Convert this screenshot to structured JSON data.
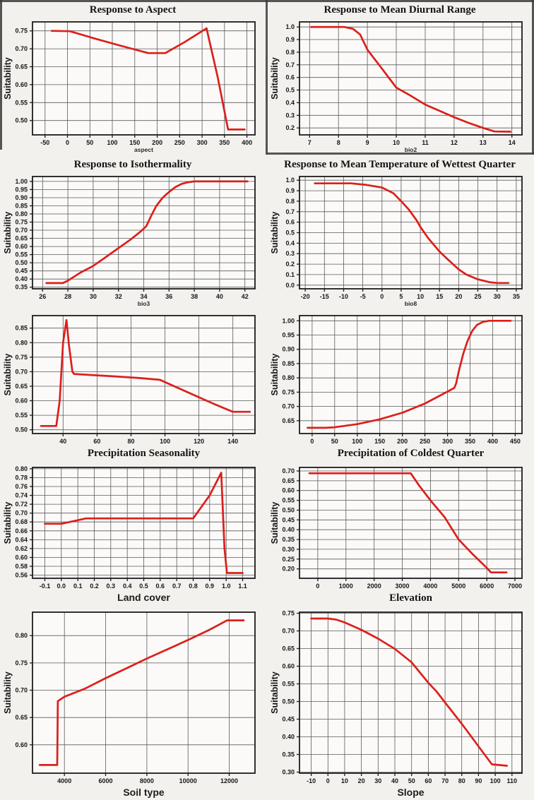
{
  "page": {
    "background": "#f3f1ee",
    "line_color": "#dc1f1b",
    "grid_color": "#5a5a5a",
    "frame_color": "#1c1c1c",
    "plot_fill": "#fbfaf8",
    "ylabel_all": "Suitability"
  },
  "chart_data": [
    {
      "type": "line",
      "title": "Response to Aspect",
      "xlabel": "aspect",
      "xlabel_style": "small-sans",
      "ylabel": "Suitability",
      "grid": true,
      "legend": "none",
      "xlim": [
        -78,
        418
      ],
      "ylim": [
        0.46,
        0.775
      ],
      "xtick_values": [
        -50,
        0,
        50,
        100,
        150,
        200,
        250,
        300,
        350,
        400
      ],
      "xtick_labels": [
        "-50",
        "0",
        "50",
        "100",
        "150",
        "200",
        "250",
        "300",
        "350",
        "400"
      ],
      "ytick_values": [
        0.5,
        0.55,
        0.6,
        0.65,
        0.7,
        0.75
      ],
      "ytick_labels": [
        "0.50",
        "0.55",
        "0.60",
        "0.65",
        "0.70",
        "0.75"
      ],
      "points": [
        [
          -35,
          0.75
        ],
        [
          5,
          0.749
        ],
        [
          60,
          0.729
        ],
        [
          120,
          0.708
        ],
        [
          180,
          0.688
        ],
        [
          218,
          0.688
        ],
        [
          260,
          0.718
        ],
        [
          310,
          0.757
        ],
        [
          335,
          0.62
        ],
        [
          358,
          0.475
        ],
        [
          395,
          0.475
        ]
      ]
    },
    {
      "type": "line",
      "title": "Response to Mean Diurnal Range",
      "xlabel": "bio2",
      "xlabel_style": "small-sans",
      "ylabel": "Suitability",
      "grid": true,
      "legend": "none",
      "xlim": [
        6.65,
        14.35
      ],
      "ylim": [
        0.145,
        1.04
      ],
      "xtick_values": [
        7,
        8,
        9,
        10,
        11,
        12,
        13,
        14
      ],
      "xtick_labels": [
        "7",
        "8",
        "9",
        "10",
        "11",
        "12",
        "13",
        "14"
      ],
      "ytick_values": [
        0.2,
        0.3,
        0.4,
        0.5,
        0.6,
        0.7,
        0.8,
        0.9,
        1.0
      ],
      "ytick_labels": [
        "0.2",
        "0.3",
        "0.4",
        "0.5",
        "0.6",
        "0.7",
        "0.8",
        "0.9",
        "1.0"
      ],
      "points": [
        [
          7.05,
          1.0
        ],
        [
          8.2,
          1.0
        ],
        [
          8.5,
          0.985
        ],
        [
          8.75,
          0.94
        ],
        [
          9.0,
          0.82
        ],
        [
          9.5,
          0.67
        ],
        [
          10.0,
          0.52
        ],
        [
          10.5,
          0.455
        ],
        [
          11.0,
          0.385
        ],
        [
          11.5,
          0.335
        ],
        [
          12.0,
          0.285
        ],
        [
          12.5,
          0.24
        ],
        [
          13.0,
          0.2
        ],
        [
          13.4,
          0.172
        ],
        [
          13.95,
          0.17
        ]
      ]
    },
    {
      "type": "line",
      "title": "Response to Isothermality",
      "xlabel": "bio3",
      "xlabel_style": "small-sans",
      "ylabel": "Suitability",
      "grid": true,
      "legend": "none",
      "xlim": [
        25.2,
        42.8
      ],
      "ylim": [
        0.34,
        1.03
      ],
      "xtick_values": [
        26,
        28,
        30,
        32,
        34,
        36,
        38,
        40,
        42
      ],
      "xtick_labels": [
        "26",
        "28",
        "30",
        "32",
        "34",
        "36",
        "38",
        "40",
        "42"
      ],
      "ytick_values": [
        0.35,
        0.4,
        0.45,
        0.5,
        0.55,
        0.6,
        0.65,
        0.7,
        0.75,
        0.8,
        0.85,
        0.9,
        0.95,
        1.0
      ],
      "ytick_labels": [
        "0.35",
        "0.40",
        "0.45",
        "0.50",
        "0.55",
        "0.60",
        "0.65",
        "0.70",
        "0.75",
        "0.80",
        "0.85",
        "0.90",
        "0.95",
        "1.00"
      ],
      "points": [
        [
          26.3,
          0.375
        ],
        [
          27.6,
          0.375
        ],
        [
          28.0,
          0.39
        ],
        [
          29.0,
          0.44
        ],
        [
          30.0,
          0.48
        ],
        [
          31.0,
          0.535
        ],
        [
          32.0,
          0.59
        ],
        [
          33.0,
          0.645
        ],
        [
          33.8,
          0.695
        ],
        [
          34.2,
          0.725
        ],
        [
          34.6,
          0.79
        ],
        [
          35.0,
          0.85
        ],
        [
          35.5,
          0.9
        ],
        [
          36.0,
          0.935
        ],
        [
          36.5,
          0.965
        ],
        [
          37.0,
          0.985
        ],
        [
          37.5,
          0.995
        ],
        [
          38.0,
          1.0
        ],
        [
          42.2,
          1.0
        ]
      ]
    },
    {
      "type": "line",
      "title": "Response to Mean Temperature of Wettest Quarter",
      "xlabel": "bio8",
      "xlabel_style": "small-sans",
      "ylabel": "Suitability",
      "grid": true,
      "legend": "none",
      "xlim": [
        -21.5,
        36.5
      ],
      "ylim": [
        -0.035,
        1.035
      ],
      "xtick_values": [
        -20,
        -15,
        -10,
        -5,
        0,
        5,
        10,
        15,
        20,
        25,
        30,
        35
      ],
      "xtick_labels": [
        "-20",
        "-15",
        "-10",
        "-5",
        "0",
        "5",
        "10",
        "15",
        "20",
        "25",
        "30",
        "35"
      ],
      "ytick_values": [
        0.0,
        0.1,
        0.2,
        0.3,
        0.4,
        0.5,
        0.6,
        0.7,
        0.8,
        0.9,
        1.0
      ],
      "ytick_labels": [
        "0.0",
        "0.1",
        "0.2",
        "0.3",
        "0.4",
        "0.5",
        "0.6",
        "0.7",
        "0.8",
        "0.9",
        "1.0"
      ],
      "points": [
        [
          -17.5,
          0.97
        ],
        [
          -8,
          0.97
        ],
        [
          -4,
          0.955
        ],
        [
          0,
          0.93
        ],
        [
          3,
          0.875
        ],
        [
          5,
          0.8
        ],
        [
          7,
          0.72
        ],
        [
          9,
          0.62
        ],
        [
          10,
          0.555
        ],
        [
          12,
          0.45
        ],
        [
          15,
          0.32
        ],
        [
          17,
          0.25
        ],
        [
          20,
          0.15
        ],
        [
          22,
          0.1
        ],
        [
          25,
          0.055
        ],
        [
          28,
          0.028
        ],
        [
          30,
          0.02
        ],
        [
          33,
          0.02
        ]
      ]
    },
    {
      "type": "line",
      "title": "",
      "xlabel": "Precipitation Seasonality",
      "xlabel_style": "bold-serif",
      "ylabel": "Suitability",
      "grid": true,
      "legend": "none",
      "xlim": [
        22,
        153
      ],
      "ylim": [
        0.487,
        0.893
      ],
      "xtick_values": [
        40,
        60,
        80,
        100,
        120,
        140
      ],
      "xtick_labels": [
        "40",
        "60",
        "80",
        "100",
        "120",
        "140"
      ],
      "ytick_values": [
        0.5,
        0.55,
        0.6,
        0.65,
        0.7,
        0.75,
        0.8,
        0.85
      ],
      "ytick_labels": [
        "0.50",
        "0.55",
        "0.60",
        "0.65",
        "0.70",
        "0.75",
        "0.80",
        "0.85"
      ],
      "points": [
        [
          27,
          0.513
        ],
        [
          36,
          0.513
        ],
        [
          38,
          0.6
        ],
        [
          40,
          0.8
        ],
        [
          42,
          0.878
        ],
        [
          43.5,
          0.79
        ],
        [
          45.5,
          0.7
        ],
        [
          46.5,
          0.692
        ],
        [
          55,
          0.689
        ],
        [
          70,
          0.684
        ],
        [
          85,
          0.678
        ],
        [
          97,
          0.672
        ],
        [
          110,
          0.638
        ],
        [
          120,
          0.612
        ],
        [
          130,
          0.586
        ],
        [
          140,
          0.562
        ],
        [
          150,
          0.562
        ]
      ]
    },
    {
      "type": "line",
      "title": "",
      "xlabel": "Precipitation of Coldest Quarter",
      "xlabel_style": "bold-serif",
      "ylabel": "Suitability",
      "grid": true,
      "legend": "none",
      "xlim": [
        -28,
        465
      ],
      "ylim": [
        0.605,
        1.018
      ],
      "xtick_values": [
        0,
        50,
        100,
        150,
        200,
        250,
        300,
        350,
        400,
        450
      ],
      "xtick_labels": [
        "0",
        "50",
        "100",
        "150",
        "200",
        "250",
        "300",
        "350",
        "400",
        "450"
      ],
      "ytick_values": [
        0.65,
        0.7,
        0.75,
        0.8,
        0.85,
        0.9,
        0.95,
        1.0
      ],
      "ytick_labels": [
        "0.65",
        "0.70",
        "0.75",
        "0.80",
        "0.85",
        "0.90",
        "0.95",
        "1.00"
      ],
      "points": [
        [
          -10,
          0.625
        ],
        [
          30,
          0.625
        ],
        [
          50,
          0.627
        ],
        [
          100,
          0.638
        ],
        [
          150,
          0.655
        ],
        [
          200,
          0.678
        ],
        [
          250,
          0.71
        ],
        [
          300,
          0.752
        ],
        [
          315,
          0.765
        ],
        [
          319,
          0.78
        ],
        [
          326,
          0.83
        ],
        [
          335,
          0.885
        ],
        [
          345,
          0.932
        ],
        [
          355,
          0.965
        ],
        [
          365,
          0.985
        ],
        [
          378,
          0.996
        ],
        [
          392,
          1.0
        ],
        [
          440,
          1.0
        ]
      ]
    },
    {
      "type": "line",
      "title": "",
      "xlabel": "Land cover",
      "xlabel_style": "bold-sans",
      "ylabel": "Suitability",
      "grid": true,
      "legend": "none",
      "xlim": [
        -0.175,
        1.175
      ],
      "ylim": [
        0.553,
        0.803
      ],
      "xtick_values": [
        -0.1,
        0.0,
        0.1,
        0.2,
        0.3,
        0.4,
        0.5,
        0.6,
        0.7,
        0.8,
        0.9,
        1.0,
        1.1
      ],
      "xtick_labels": [
        "-0.1",
        "0.0",
        "0.1",
        "0.2",
        "0.3",
        "0.4",
        "0.5",
        "0.6",
        "0.7",
        "0.8",
        "0.9",
        "1.0",
        "1.1"
      ],
      "ytick_values": [
        0.56,
        0.58,
        0.6,
        0.62,
        0.64,
        0.66,
        0.68,
        0.7,
        0.72,
        0.74,
        0.76,
        0.78,
        0.8
      ],
      "ytick_labels": [
        "0.56",
        "0.58",
        "0.60",
        "0.62",
        "0.64",
        "0.66",
        "0.68",
        "0.70",
        "0.72",
        "0.74",
        "0.76",
        "0.78",
        "0.80"
      ],
      "points": [
        [
          -0.1,
          0.676
        ],
        [
          0.0,
          0.676
        ],
        [
          0.15,
          0.688
        ],
        [
          0.8,
          0.688
        ],
        [
          0.9,
          0.74
        ],
        [
          0.97,
          0.791
        ],
        [
          0.99,
          0.62
        ],
        [
          1.005,
          0.565
        ],
        [
          1.1,
          0.565
        ]
      ]
    },
    {
      "type": "line",
      "title": "",
      "xlabel": "Elevation",
      "xlabel_style": "bold-serif",
      "ylabel": "Suitability",
      "grid": true,
      "legend": "none",
      "xlim": [
        -650,
        7250
      ],
      "ylim": [
        0.152,
        0.718
      ],
      "xtick_values": [
        0,
        1000,
        2000,
        3000,
        4000,
        5000,
        6000,
        7000
      ],
      "xtick_labels": [
        "0",
        "1000",
        "2000",
        "3000",
        "4000",
        "5000",
        "6000",
        "7000"
      ],
      "ytick_values": [
        0.2,
        0.25,
        0.3,
        0.35,
        0.4,
        0.45,
        0.5,
        0.55,
        0.6,
        0.65,
        0.7
      ],
      "ytick_labels": [
        "0.20",
        "0.25",
        "0.30",
        "0.35",
        "0.40",
        "0.45",
        "0.50",
        "0.55",
        "0.60",
        "0.65",
        "0.70"
      ],
      "points": [
        [
          -300,
          0.688
        ],
        [
          3300,
          0.688
        ],
        [
          3600,
          0.625
        ],
        [
          4000,
          0.55
        ],
        [
          4500,
          0.465
        ],
        [
          5000,
          0.35
        ],
        [
          5500,
          0.275
        ],
        [
          6000,
          0.205
        ],
        [
          6150,
          0.182
        ],
        [
          6700,
          0.182
        ]
      ]
    },
    {
      "type": "line",
      "title": "",
      "xlabel": "Soil type",
      "xlabel_style": "bold-sans",
      "ylabel": "Suitability",
      "grid": true,
      "legend": "none",
      "xlim": [
        2450,
        13250
      ],
      "ylim": [
        0.548,
        0.843
      ],
      "xtick_values": [
        4000,
        6000,
        8000,
        10000,
        12000
      ],
      "xtick_labels": [
        "4000",
        "6000",
        "8000",
        "10000",
        "12000"
      ],
      "ytick_values": [
        0.6,
        0.65,
        0.7,
        0.75,
        0.8
      ],
      "ytick_labels": [
        "0.60",
        "0.65",
        "0.70",
        "0.75",
        "0.80"
      ],
      "points": [
        [
          2800,
          0.563
        ],
        [
          3650,
          0.563
        ],
        [
          3680,
          0.68
        ],
        [
          4000,
          0.688
        ],
        [
          5000,
          0.703
        ],
        [
          6000,
          0.722
        ],
        [
          7000,
          0.74
        ],
        [
          8000,
          0.758
        ],
        [
          9000,
          0.775
        ],
        [
          10000,
          0.792
        ],
        [
          11000,
          0.81
        ],
        [
          11900,
          0.828
        ],
        [
          12700,
          0.828
        ]
      ]
    },
    {
      "type": "line",
      "title": "",
      "xlabel": "Slope",
      "xlabel_style": "bold-sans",
      "ylabel": "Suitability",
      "grid": true,
      "legend": "none",
      "xlim": [
        -17,
        116
      ],
      "ylim": [
        0.297,
        0.753
      ],
      "xtick_values": [
        -10,
        0,
        10,
        20,
        30,
        40,
        50,
        60,
        70,
        80,
        90,
        100,
        110
      ],
      "xtick_labels": [
        "-10",
        "0",
        "10",
        "20",
        "30",
        "40",
        "50",
        "60",
        "70",
        "80",
        "90",
        "100",
        "110"
      ],
      "ytick_values": [
        0.3,
        0.35,
        0.4,
        0.45,
        0.5,
        0.55,
        0.6,
        0.65,
        0.7,
        0.75
      ],
      "ytick_labels": [
        "0.30",
        "0.35",
        "0.40",
        "0.45",
        "0.50",
        "0.55",
        "0.60",
        "0.65",
        "0.70",
        "0.75"
      ],
      "points": [
        [
          -10,
          0.735
        ],
        [
          0,
          0.735
        ],
        [
          5,
          0.732
        ],
        [
          10,
          0.724
        ],
        [
          20,
          0.703
        ],
        [
          30,
          0.678
        ],
        [
          40,
          0.649
        ],
        [
          50,
          0.611
        ],
        [
          60,
          0.553
        ],
        [
          65,
          0.528
        ],
        [
          70,
          0.497
        ],
        [
          80,
          0.437
        ],
        [
          90,
          0.373
        ],
        [
          95,
          0.341
        ],
        [
          98,
          0.322
        ],
        [
          107,
          0.318
        ]
      ]
    }
  ]
}
